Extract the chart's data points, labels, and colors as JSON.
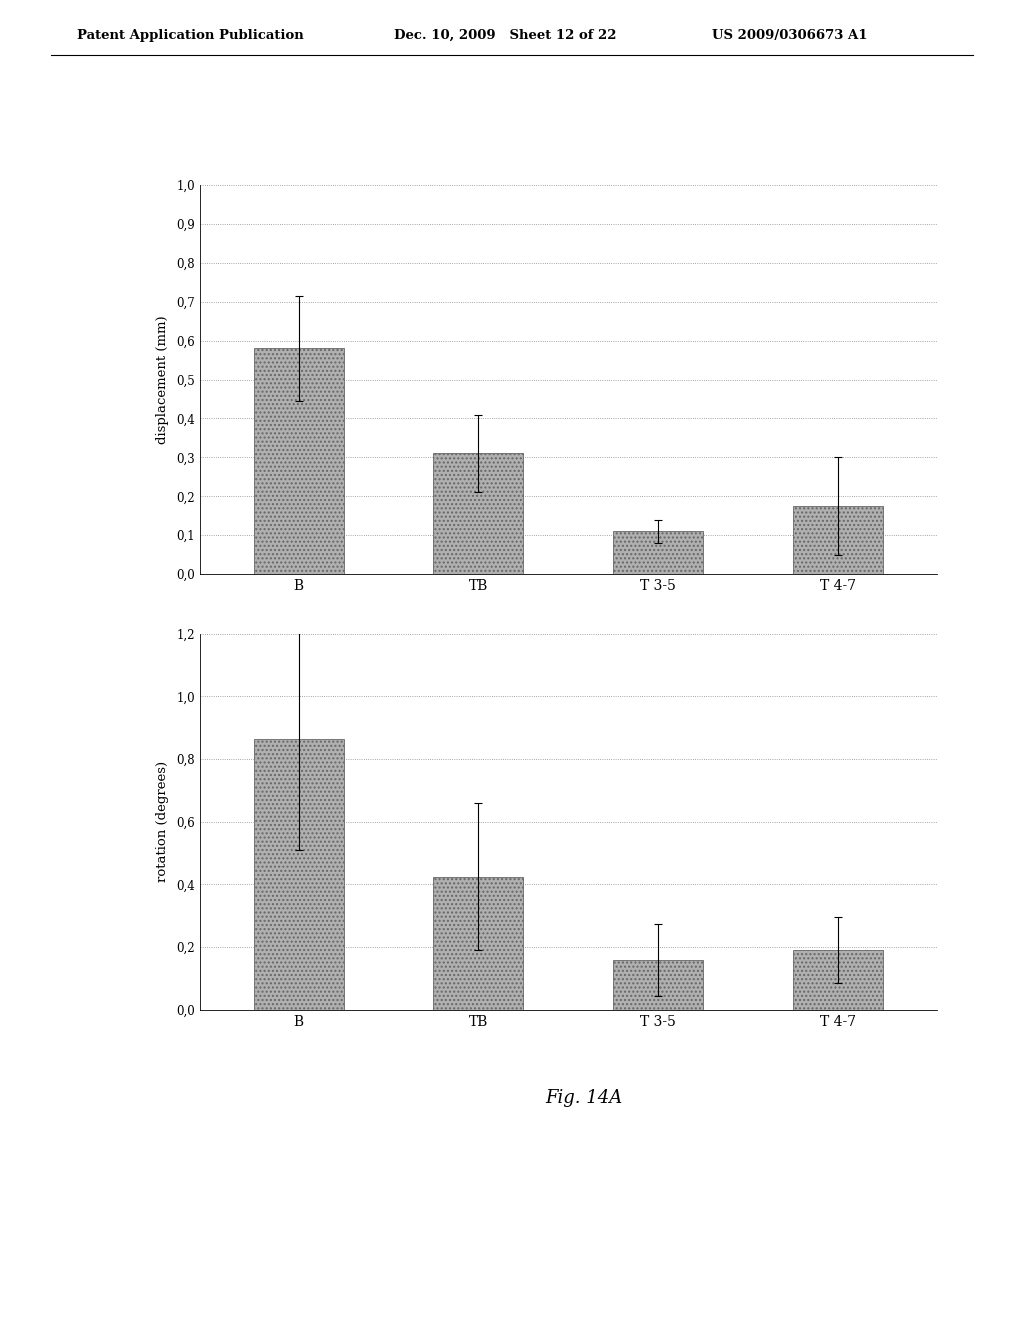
{
  "chart1": {
    "categories": [
      "B",
      "TB",
      "T 3-5",
      "T 4-7"
    ],
    "values": [
      0.58,
      0.31,
      0.11,
      0.175
    ],
    "errors": [
      0.135,
      0.1,
      0.03,
      0.125
    ],
    "ylabel": "displacement (mm)",
    "yticks": [
      0.0,
      0.1,
      0.2,
      0.3,
      0.4,
      0.5,
      0.6,
      0.7,
      0.8,
      0.9,
      1.0
    ],
    "ylim": [
      0.0,
      1.0
    ]
  },
  "chart2": {
    "categories": [
      "B",
      "TB",
      "T 3-5",
      "T 4-7"
    ],
    "values": [
      0.865,
      0.425,
      0.16,
      0.19
    ],
    "errors": [
      0.355,
      0.235,
      0.115,
      0.105
    ],
    "ylabel": "rotation (degrees)",
    "yticks": [
      0.0,
      0.2,
      0.4,
      0.6,
      0.8,
      1.0,
      1.2
    ],
    "ylim": [
      0.0,
      1.2
    ]
  },
  "bar_color": "#b0b0b0",
  "bar_hatch": "....",
  "bar_edgecolor": "#666666",
  "fig_caption": "Fig. 14A",
  "background_color": "#ffffff",
  "header_left": "Patent Application Publication",
  "header_mid": "Dec. 10, 2009   Sheet 12 of 22",
  "header_right": "US 2009/0306673 A1"
}
